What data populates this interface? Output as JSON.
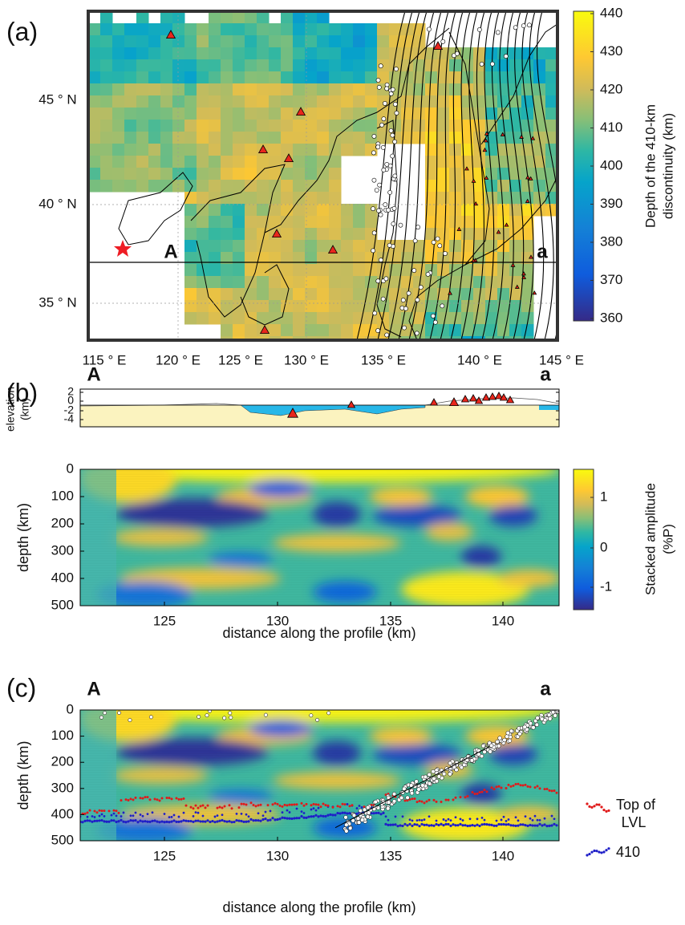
{
  "panels": [
    {
      "label": "(a)",
      "profile_start": "A",
      "profile_end": "a",
      "x_ticks": [
        "115 ° E",
        "120 ° E",
        "125 ° E",
        "130 ° E",
        "135 ° E",
        "140 ° E",
        "145 ° E"
      ],
      "y_ticks": [
        "45 ° N",
        "40 ° N",
        "35 ° N"
      ],
      "colorbar_ticks": [
        "440",
        "430",
        "420",
        "410",
        "400",
        "390",
        "380",
        "370",
        "360"
      ],
      "colorbar_title": [
        "Depth of the 410-km",
        "discontinuity (km)"
      ]
    },
    {
      "label": "(b)",
      "profile_start": "A",
      "profile_end": "a",
      "elevation_label": [
        "elevation",
        "(km)"
      ],
      "elevation_ticks": [
        "2",
        "0",
        "-2",
        "-4"
      ],
      "depth_label": "depth (km)",
      "depth_ticks": [
        "0",
        "100",
        "200",
        "300",
        "400",
        "500"
      ],
      "x_ticks": [
        "125",
        "130",
        "135",
        "140"
      ],
      "x_label": "distance along the profile (km)",
      "colorbar_ticks": [
        "1",
        "0",
        "-1"
      ],
      "colorbar_title": [
        "Stacked amplitude",
        "(%P)"
      ]
    },
    {
      "label": "(c)",
      "profile_start": "A",
      "profile_end": "a",
      "depth_label": "depth (km)",
      "depth_ticks": [
        "0",
        "100",
        "200",
        "300",
        "400",
        "500"
      ],
      "x_ticks": [
        "125",
        "130",
        "135",
        "140"
      ],
      "x_label": "distance along the profile (km)",
      "legend": [
        [
          "Top of",
          "LVL"
        ],
        [
          "410"
        ]
      ]
    }
  ]
}
